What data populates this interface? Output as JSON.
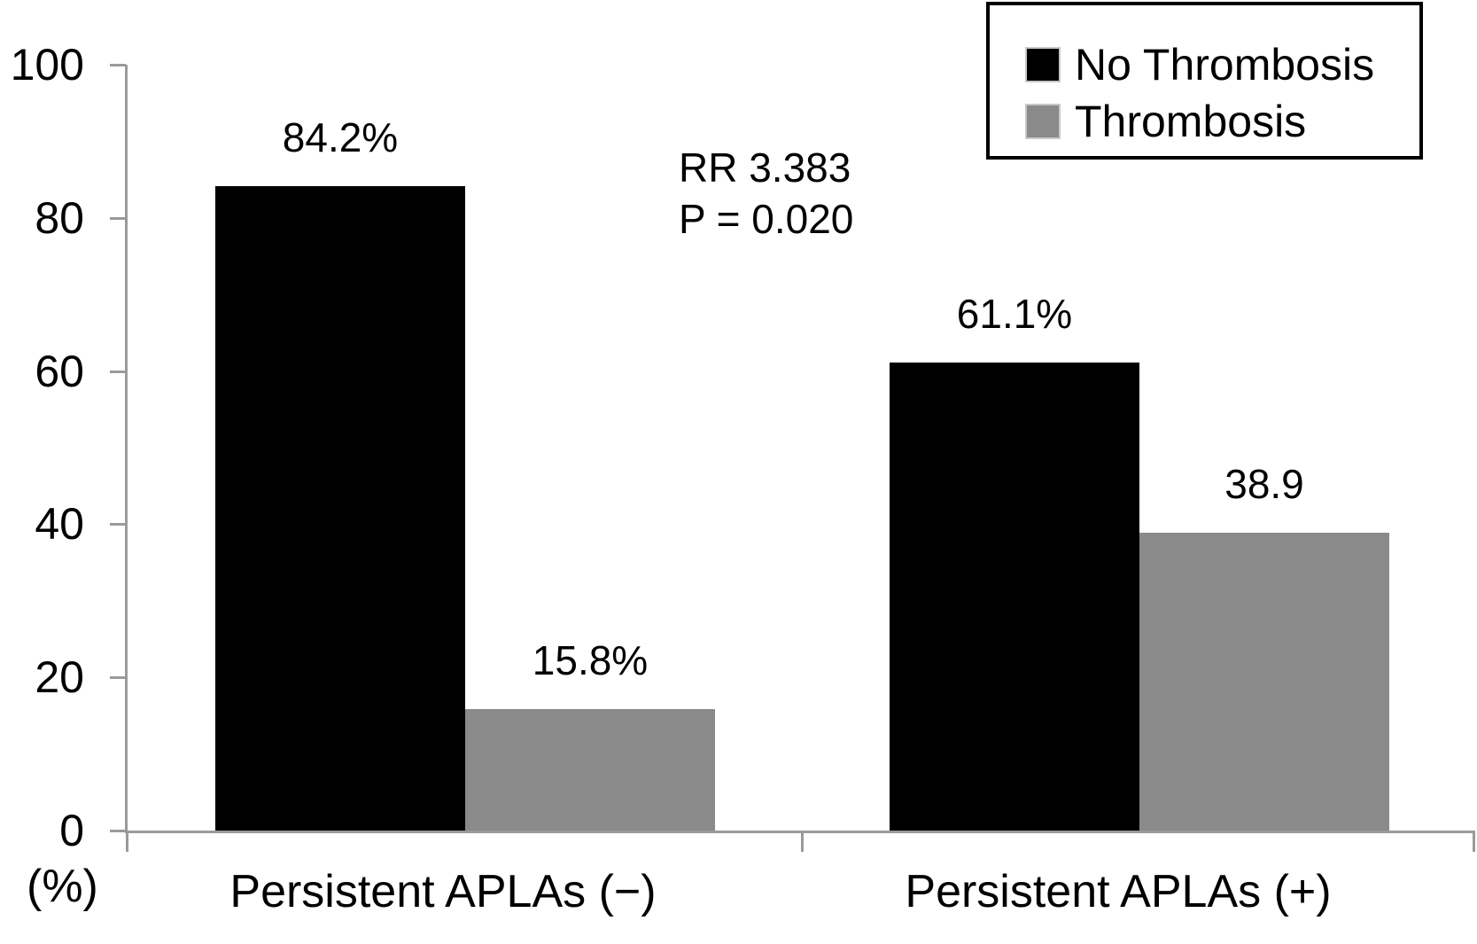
{
  "chart_data": {
    "type": "bar",
    "title": "",
    "categories": [
      "Persistent APLAs (−)",
      "Persistent APLAs (+)"
    ],
    "series": [
      {
        "name": "No Thrombosis",
        "color": "#000000",
        "values": [
          84.2,
          61.1
        ],
        "data_labels": [
          "84.2%",
          "61.1%"
        ]
      },
      {
        "name": "Thrombosis",
        "color": "#8a8a8a",
        "values": [
          15.8,
          38.9
        ],
        "data_labels": [
          "15.8%",
          "38.9"
        ]
      }
    ],
    "ylabel": "(%)",
    "ylim": [
      0,
      100
    ],
    "yticks": [
      0,
      20,
      40,
      60,
      80,
      100
    ],
    "grid": false,
    "legend_position": "top-right",
    "annotations": [
      "RR 3.383",
      "P = 0.020"
    ]
  },
  "axis": {
    "unit_label": "(%)",
    "ytick_labels": [
      "0",
      "20",
      "40",
      "60",
      "80",
      "100"
    ]
  },
  "annotation": {
    "line1": "RR 3.383",
    "line2": "P = 0.020"
  },
  "legend": {
    "items": [
      {
        "label": "No Thrombosis",
        "color": "#000000"
      },
      {
        "label": "Thrombosis",
        "color": "#8a8a8a"
      }
    ]
  },
  "colors": {
    "series_no_thrombosis": "#000000",
    "series_thrombosis": "#8a8a8a",
    "axis": "#9a9a9a",
    "text": "#000000",
    "background": "#ffffff"
  }
}
